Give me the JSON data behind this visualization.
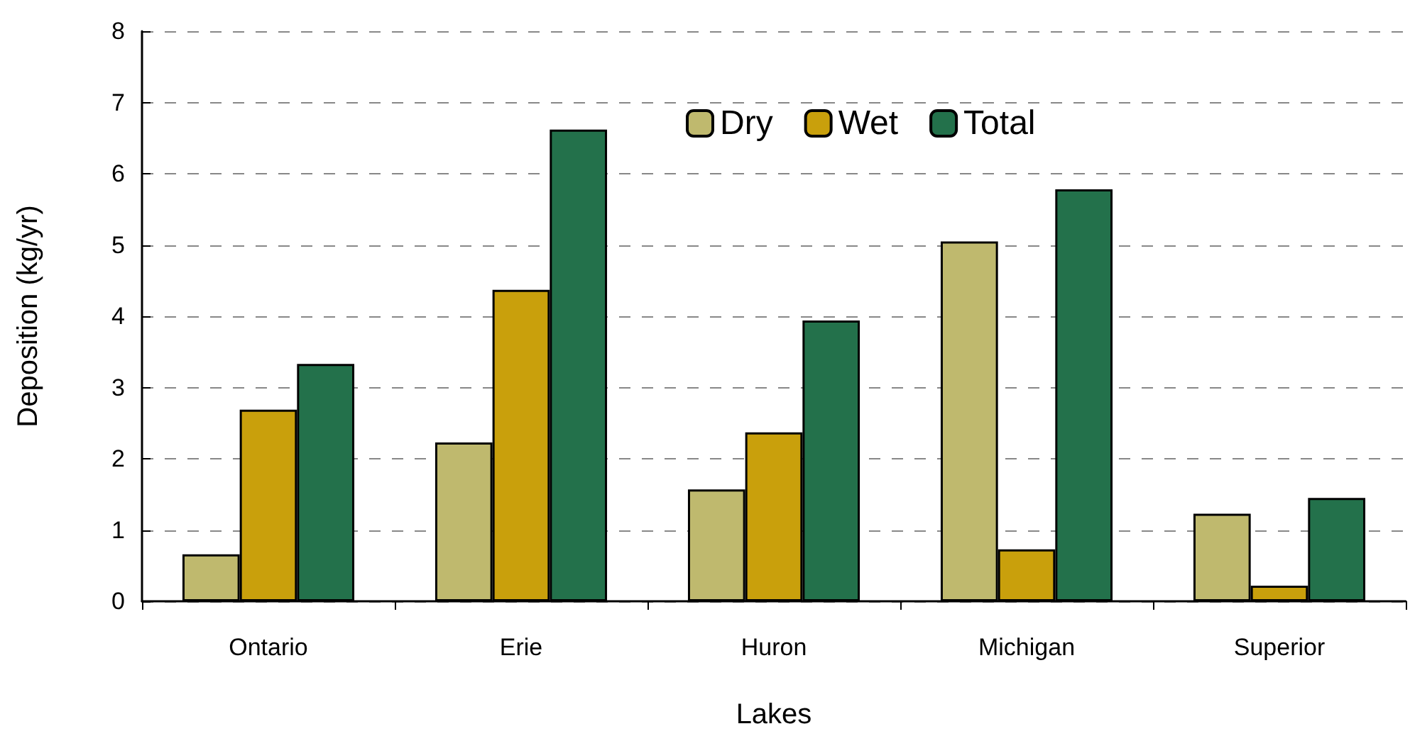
{
  "chart_data": {
    "type": "bar",
    "xlabel": "Lakes",
    "ylabel": "Deposition (kg/yr)",
    "categories": [
      "Ontario",
      "Erie",
      "Huron",
      "Michigan",
      "Superior"
    ],
    "series": [
      {
        "name": "Dry",
        "color": "#bfb96e",
        "values": [
          0.66,
          2.23,
          1.57,
          5.05,
          1.23
        ]
      },
      {
        "name": "Wet",
        "color": "#c9a00c",
        "values": [
          2.69,
          4.37,
          2.37,
          0.73,
          0.22
        ]
      },
      {
        "name": "Total",
        "color": "#23714b",
        "values": [
          3.33,
          6.62,
          3.94,
          5.78,
          1.45
        ]
      }
    ],
    "ylim": [
      0,
      8
    ],
    "yticks": [
      0,
      1,
      2,
      3,
      4,
      5,
      6,
      7,
      8
    ],
    "grid": "y",
    "legend": "top"
  }
}
